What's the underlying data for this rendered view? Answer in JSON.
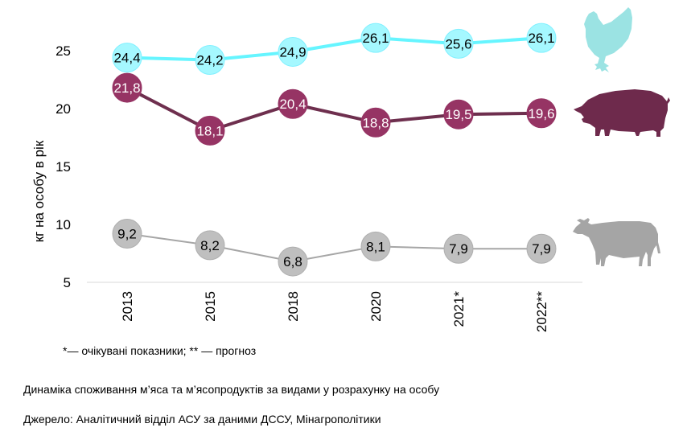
{
  "chart_data": {
    "type": "line",
    "ylabel": "кг на особу в рік",
    "ylim": [
      5,
      27
    ],
    "yticks": [
      5,
      10,
      15,
      20,
      25
    ],
    "categories": [
      "2013",
      "2015",
      "2018",
      "2020",
      "2021*",
      "2022**"
    ],
    "grid": false,
    "series": [
      {
        "values": [
          24.4,
          24.2,
          24.9,
          26.1,
          25.6,
          26.1
        ],
        "labels": [
          "24,4",
          "24,2",
          "24,9",
          "26,1",
          "25,6",
          "26,1"
        ],
        "color": "#66F5FF",
        "marker_color": "#A5F8FF",
        "text_color": "#000000",
        "icon": "chicken-icon",
        "icon_color": "#9BE3E3"
      },
      {
        "values": [
          21.8,
          18.1,
          20.4,
          18.8,
          19.5,
          19.6
        ],
        "labels": [
          "21,8",
          "18,1",
          "20,4",
          "18,8",
          "19,5",
          "19,6"
        ],
        "color": "#6E2F4E",
        "marker_color": "#963464",
        "text_color": "#FFFFFF",
        "icon": "pig-icon",
        "icon_color": "#6E2A4C"
      },
      {
        "values": [
          9.2,
          8.2,
          6.8,
          8.1,
          7.9,
          7.9
        ],
        "labels": [
          "9,2",
          "8,2",
          "6,8",
          "8,1",
          "7,9",
          "7,9"
        ],
        "color": "#A6A6A6",
        "marker_color": "#BFBFBF",
        "text_color": "#000000",
        "icon": "cow-icon",
        "icon_color": "#A5A5A5"
      }
    ]
  },
  "footnote": "*— очікувані показники; ** — прогноз",
  "caption": "Динаміка споживання м’яса та м’ясопродуктів за видами у розрахунку на особу",
  "source": "Джерело: Аналітичний відділ АСУ за даними ДССУ, Мінагрополітики"
}
